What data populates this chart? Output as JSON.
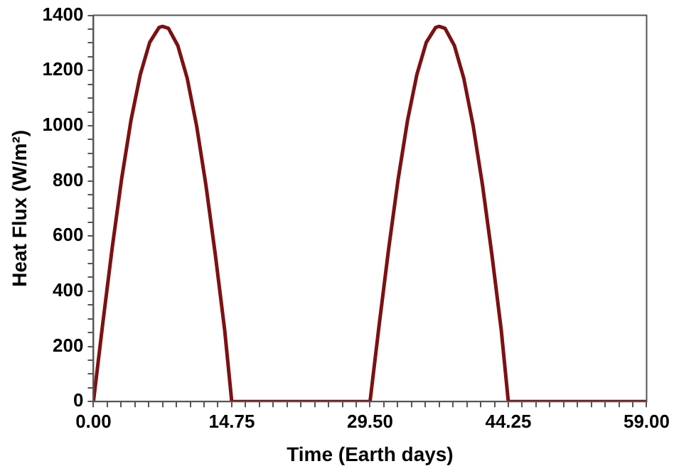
{
  "chart_data": {
    "type": "line",
    "xlabel": "Time (Earth days)",
    "ylabel": "Heat Flux (W/m²)",
    "series": [
      {
        "color": "#7b1113",
        "x": [
          0,
          1,
          2,
          3,
          4,
          5,
          6,
          7,
          7.375,
          8,
          9,
          10,
          11,
          12,
          13,
          14,
          14.75,
          29.5,
          30.5,
          31.5,
          32.5,
          33.5,
          34.5,
          35.5,
          36.5,
          36.875,
          37.5,
          38.5,
          39.5,
          40.5,
          41.5,
          42.5,
          43.5,
          44.25,
          59
        ],
        "values": [
          0,
          285,
          557,
          806,
          1019,
          1186,
          1302,
          1356,
          1360,
          1353,
          1290,
          1172,
          1000,
          784,
          532,
          258,
          0,
          0,
          285,
          557,
          806,
          1019,
          1186,
          1302,
          1356,
          1360,
          1353,
          1290,
          1172,
          1000,
          784,
          532,
          258,
          0,
          0
        ]
      }
    ],
    "xlim": [
      0,
      59
    ],
    "ylim": [
      0,
      1400
    ],
    "xticks": [
      {
        "value": 0,
        "label": "0.00"
      },
      {
        "value": 1.475,
        "label": null
      },
      {
        "value": 2.95,
        "label": null
      },
      {
        "value": 4.425,
        "label": null
      },
      {
        "value": 5.9,
        "label": null
      },
      {
        "value": 7.375,
        "label": null
      },
      {
        "value": 8.85,
        "label": null
      },
      {
        "value": 10.325,
        "label": null
      },
      {
        "value": 11.8,
        "label": null
      },
      {
        "value": 13.275,
        "label": null
      },
      {
        "value": 14.75,
        "label": "14.75"
      },
      {
        "value": 16.225,
        "label": null
      },
      {
        "value": 17.7,
        "label": null
      },
      {
        "value": 19.175,
        "label": null
      },
      {
        "value": 20.65,
        "label": null
      },
      {
        "value": 22.125,
        "label": null
      },
      {
        "value": 23.6,
        "label": null
      },
      {
        "value": 25.075,
        "label": null
      },
      {
        "value": 26.55,
        "label": null
      },
      {
        "value": 28.025,
        "label": null
      },
      {
        "value": 29.5,
        "label": "29.50"
      },
      {
        "value": 30.975,
        "label": null
      },
      {
        "value": 32.45,
        "label": null
      },
      {
        "value": 33.925,
        "label": null
      },
      {
        "value": 35.4,
        "label": null
      },
      {
        "value": 36.875,
        "label": null
      },
      {
        "value": 38.35,
        "label": null
      },
      {
        "value": 39.825,
        "label": null
      },
      {
        "value": 41.3,
        "label": null
      },
      {
        "value": 42.775,
        "label": null
      },
      {
        "value": 44.25,
        "label": "44.25"
      },
      {
        "value": 45.725,
        "label": null
      },
      {
        "value": 47.2,
        "label": null
      },
      {
        "value": 48.675,
        "label": null
      },
      {
        "value": 50.15,
        "label": null
      },
      {
        "value": 51.625,
        "label": null
      },
      {
        "value": 53.1,
        "label": null
      },
      {
        "value": 54.575,
        "label": null
      },
      {
        "value": 56.05,
        "label": null
      },
      {
        "value": 57.525,
        "label": null
      },
      {
        "value": 59,
        "label": "59.00"
      }
    ],
    "yticks": [
      0,
      {
        "value": 50,
        "label": null
      },
      {
        "value": 100,
        "label": null
      },
      {
        "value": 150,
        "label": null
      },
      200,
      {
        "value": 250,
        "label": null
      },
      {
        "value": 300,
        "label": null
      },
      {
        "value": 350,
        "label": null
      },
      400,
      {
        "value": 450,
        "label": null
      },
      {
        "value": 500,
        "label": null
      },
      {
        "value": 550,
        "label": null
      },
      600,
      {
        "value": 650,
        "label": null
      },
      {
        "value": 700,
        "label": null
      },
      {
        "value": 750,
        "label": null
      },
      800,
      {
        "value": 850,
        "label": null
      },
      {
        "value": 900,
        "label": null
      },
      {
        "value": 950,
        "label": null
      },
      1000,
      {
        "value": 1050,
        "label": null
      },
      {
        "value": 1100,
        "label": null
      },
      {
        "value": 1150,
        "label": null
      },
      1200,
      {
        "value": 1250,
        "label": null
      },
      {
        "value": 1300,
        "label": null
      },
      {
        "value": 1350,
        "label": null
      },
      1400
    ],
    "grid": false,
    "legend": false,
    "marker": "none",
    "line_style": "solid"
  }
}
